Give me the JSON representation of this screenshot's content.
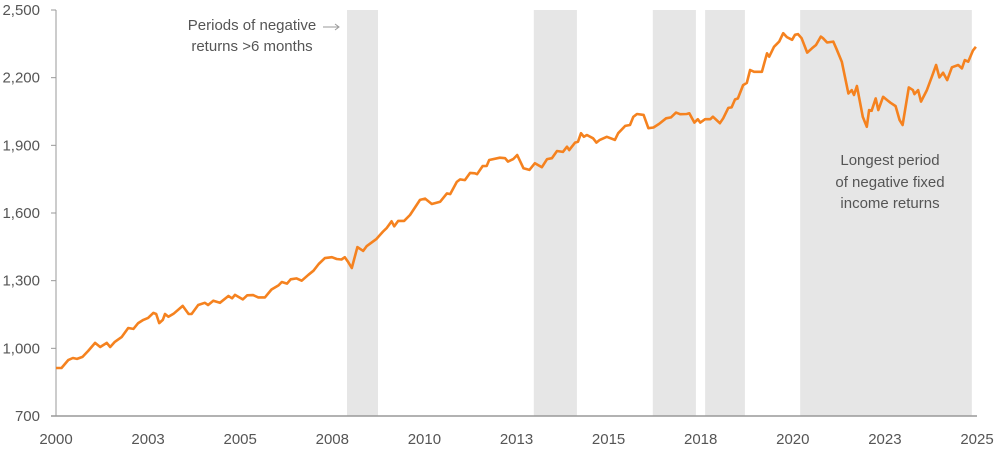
{
  "chart_data": {
    "type": "line",
    "title": "",
    "xlabel": "",
    "ylabel": "",
    "xlim": [
      2000,
      2025
    ],
    "ylim": [
      700,
      2500
    ],
    "grid": false,
    "line_color": "#F5821F",
    "shade_color": "#E6E6E6",
    "axis_color": "#999999",
    "yticks": [
      {
        "value": 700,
        "label": "700"
      },
      {
        "value": 1000,
        "label": "1,000"
      },
      {
        "value": 1300,
        "label": "1,300"
      },
      {
        "value": 1600,
        "label": "1,600"
      },
      {
        "value": 1900,
        "label": "1,900"
      },
      {
        "value": 2200,
        "label": "2,200"
      },
      {
        "value": 2500,
        "label": "2,500"
      }
    ],
    "xticks": [
      {
        "value": 2000,
        "label": "2000"
      },
      {
        "value": 2002.5,
        "label": "2003"
      },
      {
        "value": 2005,
        "label": "2005"
      },
      {
        "value": 2007.5,
        "label": "2008"
      },
      {
        "value": 2010,
        "label": "2010"
      },
      {
        "value": 2012.5,
        "label": "2013"
      },
      {
        "value": 2015,
        "label": "2015"
      },
      {
        "value": 2017.5,
        "label": "2018"
      },
      {
        "value": 2020,
        "label": "2020"
      },
      {
        "value": 2022.5,
        "label": "2023"
      },
      {
        "value": 2025,
        "label": "2025"
      }
    ],
    "shaded_periods": [
      [
        2007.9,
        2008.74
      ],
      [
        2012.97,
        2014.14
      ],
      [
        2016.2,
        2017.37
      ],
      [
        2017.62,
        2018.7
      ],
      [
        2020.2,
        2024.86
      ]
    ],
    "annotations": [
      {
        "lines": [
          "Periods of negative",
          "returns >6 months"
        ],
        "arrow": true
      },
      {
        "lines": [
          "Longest period",
          "of negative fixed",
          "income returns"
        ],
        "arrow": false
      }
    ],
    "series": [
      {
        "x": [
          2000.0,
          2000.15,
          2000.33,
          2000.46,
          2000.57,
          2000.72,
          2000.87,
          2001.06,
          2001.2,
          2001.38,
          2001.47,
          2001.6,
          2001.78,
          2001.96,
          2002.1,
          2002.23,
          2002.37,
          2002.5,
          2002.64,
          2002.72,
          2002.8,
          2002.9,
          2002.96,
          2003.05,
          2003.19,
          2003.44,
          2003.6,
          2003.68,
          2003.86,
          2004.04,
          2004.13,
          2004.27,
          2004.45,
          2004.68,
          2004.78,
          2004.86,
          2005.07,
          2005.19,
          2005.35,
          2005.49,
          2005.67,
          2005.85,
          2006.04,
          2006.13,
          2006.27,
          2006.37,
          2006.53,
          2006.67,
          2006.85,
          2006.99,
          2007.13,
          2007.3,
          2007.49,
          2007.62,
          2007.75,
          2007.84,
          2007.93,
          2008.03,
          2008.18,
          2008.34,
          2008.43,
          2008.7,
          2008.88,
          2008.98,
          2009.11,
          2009.18,
          2009.29,
          2009.45,
          2009.61,
          2009.88,
          2010.02,
          2010.2,
          2010.43,
          2010.61,
          2010.7,
          2010.88,
          2010.97,
          2011.1,
          2011.24,
          2011.37,
          2011.43,
          2011.58,
          2011.69,
          2011.76,
          2012.05,
          2012.19,
          2012.27,
          2012.41,
          2012.52,
          2012.69,
          2012.85,
          2013.0,
          2013.19,
          2013.33,
          2013.46,
          2013.6,
          2013.76,
          2013.87,
          2013.93,
          2014.09,
          2014.17,
          2014.25,
          2014.33,
          2014.41,
          2014.58,
          2014.67,
          2014.76,
          2014.95,
          2015.17,
          2015.26,
          2015.45,
          2015.58,
          2015.67,
          2015.77,
          2015.95,
          2016.08,
          2016.22,
          2016.37,
          2016.56,
          2016.69,
          2016.83,
          2016.94,
          2017.12,
          2017.19,
          2017.33,
          2017.42,
          2017.49,
          2017.62,
          2017.76,
          2017.83,
          2018.02,
          2018.11,
          2018.25,
          2018.34,
          2018.43,
          2018.51,
          2018.65,
          2018.75,
          2018.84,
          2018.95,
          2019.16,
          2019.3,
          2019.36,
          2019.49,
          2019.63,
          2019.74,
          2019.84,
          2019.98,
          2020.06,
          2020.14,
          2020.24,
          2020.39,
          2020.52,
          2020.63,
          2020.76,
          2020.82,
          2020.93,
          2021.1,
          2021.19,
          2021.33,
          2021.51,
          2021.6,
          2021.66,
          2021.74,
          2021.9,
          2022.01,
          2022.07,
          2022.14,
          2022.25,
          2022.32,
          2022.45,
          2022.54,
          2022.65,
          2022.79,
          2022.9,
          2022.98,
          2023.15,
          2023.26,
          2023.3,
          2023.4,
          2023.48,
          2023.64,
          2023.78,
          2023.89,
          2023.98,
          2024.08,
          2024.19,
          2024.32,
          2024.49,
          2024.59,
          2024.67,
          2024.76,
          2024.89,
          2024.97
        ],
        "y": [
          913,
          913,
          948,
          957,
          953,
          962,
          988,
          1024,
          1006,
          1024,
          1006,
          1029,
          1050,
          1090,
          1086,
          1112,
          1126,
          1135,
          1157,
          1152,
          1112,
          1126,
          1152,
          1140,
          1153,
          1188,
          1152,
          1152,
          1192,
          1202,
          1192,
          1211,
          1202,
          1232,
          1222,
          1237,
          1217,
          1235,
          1236,
          1226,
          1226,
          1261,
          1279,
          1294,
          1287,
          1306,
          1310,
          1300,
          1326,
          1344,
          1374,
          1400,
          1404,
          1396,
          1394,
          1404,
          1383,
          1356,
          1449,
          1432,
          1453,
          1485,
          1518,
          1534,
          1563,
          1541,
          1565,
          1565,
          1591,
          1658,
          1664,
          1640,
          1650,
          1687,
          1684,
          1738,
          1749,
          1746,
          1778,
          1776,
          1772,
          1808,
          1809,
          1835,
          1845,
          1843,
          1828,
          1839,
          1857,
          1798,
          1791,
          1821,
          1803,
          1839,
          1843,
          1875,
          1871,
          1894,
          1879,
          1912,
          1916,
          1954,
          1938,
          1946,
          1931,
          1912,
          1924,
          1938,
          1924,
          1954,
          1986,
          1990,
          2026,
          2039,
          2035,
          1976,
          1979,
          1995,
          2020,
          2024,
          2045,
          2038,
          2039,
          2042,
          2001,
          2016,
          2001,
          2016,
          2016,
          2027,
          1998,
          2020,
          2066,
          2068,
          2103,
          2108,
          2167,
          2177,
          2234,
          2226,
          2226,
          2308,
          2293,
          2337,
          2360,
          2397,
          2380,
          2368,
          2390,
          2393,
          2375,
          2311,
          2330,
          2345,
          2382,
          2375,
          2356,
          2360,
          2326,
          2271,
          2130,
          2145,
          2123,
          2163,
          2026,
          1982,
          2056,
          2053,
          2108,
          2056,
          2115,
          2103,
          2089,
          2074,
          2012,
          1990,
          2157,
          2145,
          2127,
          2145,
          2094,
          2145,
          2207,
          2256,
          2201,
          2222,
          2189,
          2246,
          2256,
          2241,
          2278,
          2271,
          2320,
          2337
        ]
      }
    ]
  }
}
